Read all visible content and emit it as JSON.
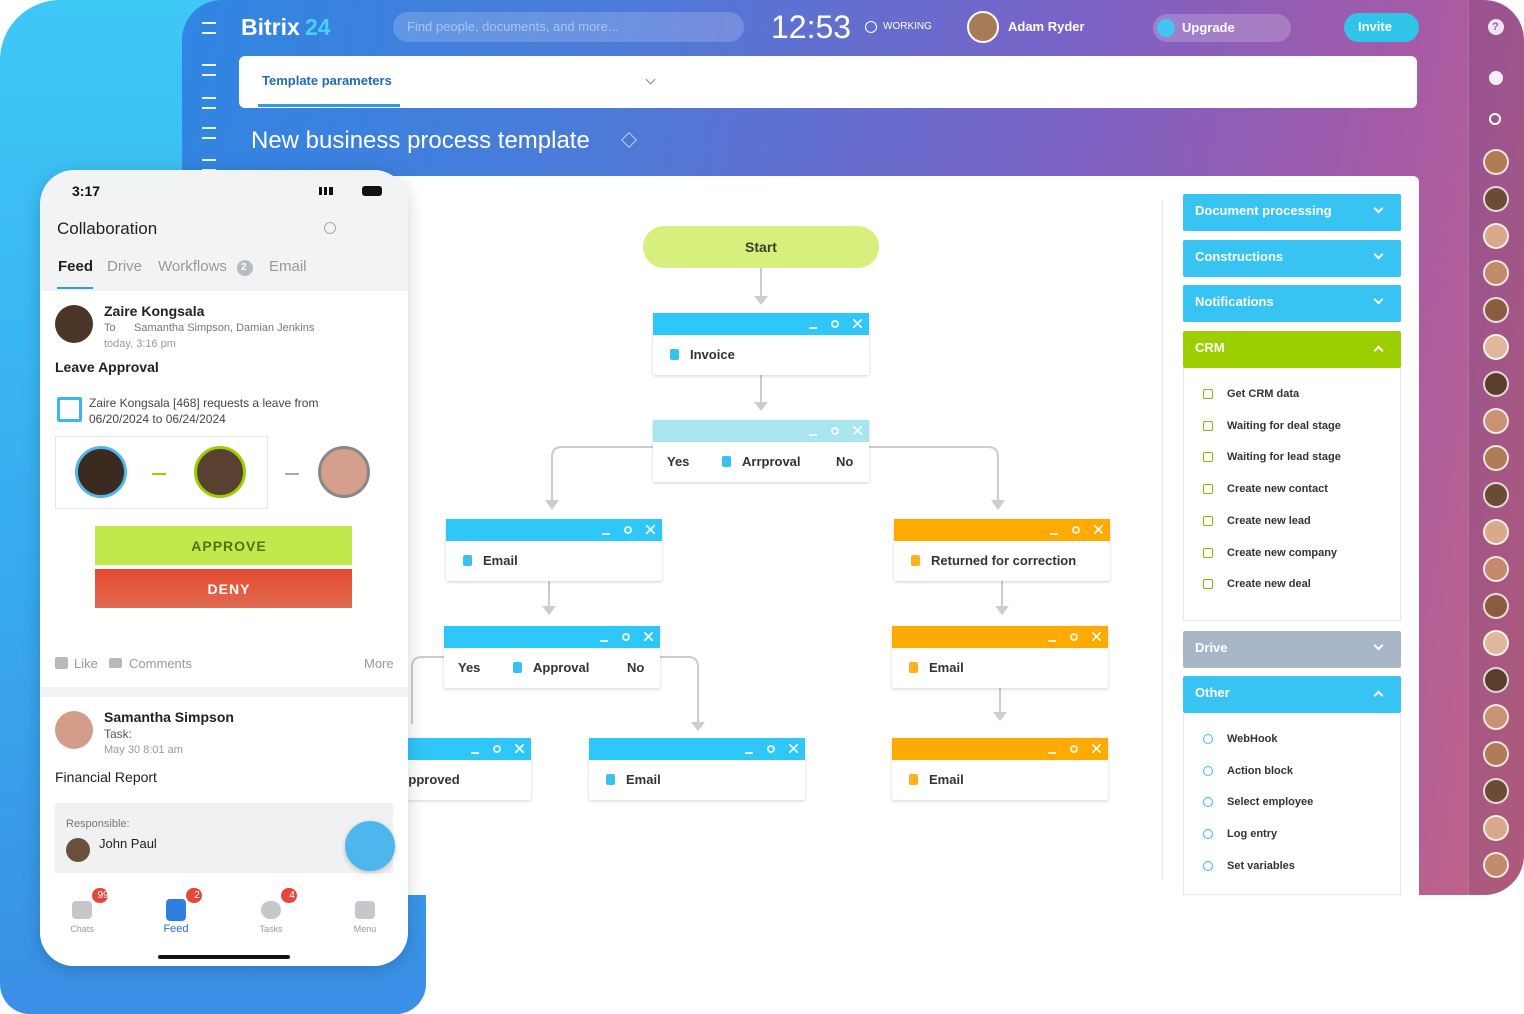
{
  "topbar": {
    "brand": "Bitrix",
    "brand_suffix": "24",
    "search_placeholder": "Find people, documents, and more...",
    "clock": "12:53",
    "status": "WORKING",
    "user": "Adam Ryder",
    "upgrade": "Upgrade",
    "invite": "Invite",
    "help": "?"
  },
  "tab": "Template parameters",
  "page_title": "New business process template",
  "flow": {
    "nodes": [
      {
        "label": "Start"
      },
      {
        "label": "Invoice"
      },
      {
        "yes": "Yes",
        "label": "Arrproval",
        "no": "No"
      },
      {
        "label": "Email"
      },
      {
        "label": "Returned for correction"
      },
      {
        "yes": "Yes",
        "label": "Approval",
        "no": "No"
      },
      {
        "label": "Email"
      },
      {
        "label": "Approved"
      },
      {
        "label": "Email"
      },
      {
        "label": "Email"
      }
    ]
  },
  "sidebar": {
    "groups": [
      {
        "title": "Document processing"
      },
      {
        "title": "Constructions"
      },
      {
        "title": "Notifications"
      },
      {
        "title": "CRM",
        "items": [
          "Get CRM data",
          "Waiting for deal stage",
          "Waiting for lead stage",
          "Create new contact",
          "Create new lead",
          "Create new company",
          "Create new deal"
        ]
      },
      {
        "title": "Drive"
      },
      {
        "title": "Other",
        "items": [
          "WebHook",
          "Action block",
          "Select employee",
          "Log entry",
          "Set variables"
        ]
      }
    ]
  },
  "phone": {
    "time": "3:17",
    "title": "Collaboration",
    "tabs": [
      "Feed",
      "Drive",
      "Workflows",
      "Email"
    ],
    "workflows_badge": "2",
    "post1": {
      "author": "Zaire Kongsala",
      "to": "To",
      "recipients": "Samantha Simpson, Damian Jenkins",
      "time": "today, 3:16 pm",
      "title": "Leave Approval",
      "text_line1": "Zaire Kongsala [468] requests a leave from",
      "text_line2": "06/20/2024 to 06/24/2024",
      "approve": "APPROVE",
      "deny": "DENY",
      "like": "Like",
      "comments": "Comments",
      "more": "More"
    },
    "post2": {
      "author": "Samantha Simpson",
      "kind": "Task:",
      "time": "May 30 8:01 am",
      "title": "Financial Report",
      "responsible_label": "Responsible:",
      "responsible": "John Paul"
    },
    "nav": [
      {
        "label": "Chats",
        "badge": "99"
      },
      {
        "label": "Feed",
        "badge": "2"
      },
      {
        "label": "Tasks",
        "badge": "4"
      },
      {
        "label": "Menu"
      }
    ]
  }
}
